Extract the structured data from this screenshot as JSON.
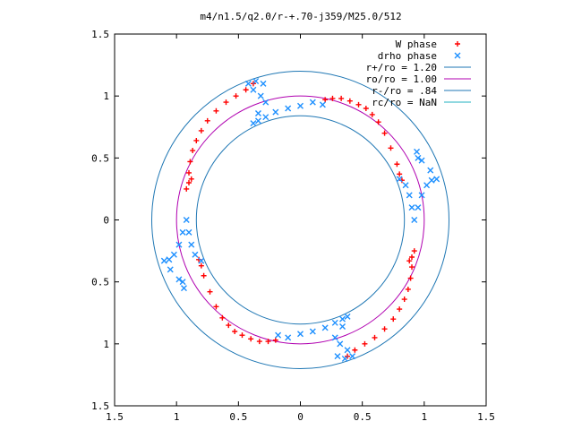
{
  "chart_data": {
    "type": "scatter",
    "title": "m4/n1.5/q2.0/r-+.70-j359/M25.0/512",
    "xlim": [
      -1.5,
      1.5
    ],
    "ylim": [
      -1.5,
      1.5
    ],
    "x_ticks": [
      -1.5,
      -1,
      -0.5,
      0,
      0.5,
      1,
      1.5
    ],
    "y_ticks": [
      -1.5,
      -1,
      -0.5,
      0,
      0.5,
      1,
      1.5
    ],
    "x_tick_labels": [
      "1.5",
      "1",
      "0.5",
      "0",
      "0.5",
      "1",
      "1.5"
    ],
    "y_tick_labels": [
      "1.5",
      "1",
      "0.5",
      "0",
      "0.5",
      "1",
      "1.5"
    ],
    "grid": false,
    "legend_position": "top-right",
    "series": [
      {
        "name": "W phase",
        "marker": "+",
        "color": "#ff0000",
        "points": [
          [
            0.2,
            0.97
          ],
          [
            0.26,
            0.98
          ],
          [
            0.33,
            0.98
          ],
          [
            0.4,
            0.96
          ],
          [
            0.47,
            0.93
          ],
          [
            0.53,
            0.9
          ],
          [
            0.58,
            0.85
          ],
          [
            0.63,
            0.79
          ],
          [
            0.68,
            0.7
          ],
          [
            0.73,
            0.58
          ],
          [
            0.78,
            0.45
          ],
          [
            0.8,
            0.37
          ],
          [
            0.82,
            0.32
          ],
          [
            0.88,
            -0.33
          ],
          [
            0.9,
            -0.3
          ],
          [
            0.92,
            -0.25
          ],
          [
            0.9,
            -0.38
          ],
          [
            0.89,
            -0.47
          ],
          [
            0.87,
            -0.56
          ],
          [
            0.84,
            -0.64
          ],
          [
            0.8,
            -0.72
          ],
          [
            0.75,
            -0.8
          ],
          [
            0.68,
            -0.88
          ],
          [
            0.6,
            -0.95
          ],
          [
            0.52,
            -1.0
          ],
          [
            0.44,
            -1.05
          ],
          [
            0.38,
            -1.1
          ],
          [
            -0.2,
            -0.97
          ],
          [
            -0.26,
            -0.98
          ],
          [
            -0.33,
            -0.98
          ],
          [
            -0.4,
            -0.96
          ],
          [
            -0.47,
            -0.93
          ],
          [
            -0.53,
            -0.9
          ],
          [
            -0.58,
            -0.85
          ],
          [
            -0.63,
            -0.79
          ],
          [
            -0.68,
            -0.7
          ],
          [
            -0.73,
            -0.58
          ],
          [
            -0.78,
            -0.45
          ],
          [
            -0.8,
            -0.37
          ],
          [
            -0.82,
            -0.32
          ],
          [
            -0.88,
            0.33
          ],
          [
            -0.9,
            0.3
          ],
          [
            -0.92,
            0.25
          ],
          [
            -0.9,
            0.38
          ],
          [
            -0.89,
            0.47
          ],
          [
            -0.87,
            0.56
          ],
          [
            -0.84,
            0.64
          ],
          [
            -0.8,
            0.72
          ],
          [
            -0.75,
            0.8
          ],
          [
            -0.68,
            0.88
          ],
          [
            -0.6,
            0.95
          ],
          [
            -0.52,
            1.0
          ],
          [
            -0.44,
            1.05
          ],
          [
            -0.38,
            1.1
          ]
        ]
      },
      {
        "name": "drho phase",
        "marker": "x",
        "color": "#1e90ff",
        "points": [
          [
            0.8,
            0.33
          ],
          [
            0.85,
            0.28
          ],
          [
            0.88,
            0.2
          ],
          [
            0.9,
            0.1
          ],
          [
            0.92,
            0.0
          ],
          [
            0.95,
            0.1
          ],
          [
            0.98,
            0.2
          ],
          [
            1.02,
            0.28
          ],
          [
            1.06,
            0.32
          ],
          [
            1.1,
            0.33
          ],
          [
            1.05,
            0.4
          ],
          [
            0.98,
            0.48
          ],
          [
            0.94,
            0.55
          ],
          [
            0.95,
            0.5
          ],
          [
            -0.18,
            -0.93
          ],
          [
            -0.1,
            -0.95
          ],
          [
            0.0,
            -0.92
          ],
          [
            0.1,
            -0.9
          ],
          [
            0.2,
            -0.87
          ],
          [
            0.28,
            -0.83
          ],
          [
            0.34,
            -0.8
          ],
          [
            0.38,
            -0.78
          ],
          [
            0.34,
            -0.86
          ],
          [
            0.28,
            -0.95
          ],
          [
            0.32,
            -1.0
          ],
          [
            0.38,
            -1.05
          ],
          [
            0.42,
            -1.1
          ],
          [
            0.36,
            -1.12
          ],
          [
            0.3,
            -1.1
          ],
          [
            -0.8,
            -0.33
          ],
          [
            -0.85,
            -0.28
          ],
          [
            -0.88,
            -0.2
          ],
          [
            -0.9,
            -0.1
          ],
          [
            -0.92,
            0.0
          ],
          [
            -0.95,
            -0.1
          ],
          [
            -0.98,
            -0.2
          ],
          [
            -1.02,
            -0.28
          ],
          [
            -1.06,
            -0.32
          ],
          [
            -1.1,
            -0.33
          ],
          [
            -1.05,
            -0.4
          ],
          [
            -0.98,
            -0.48
          ],
          [
            -0.94,
            -0.55
          ],
          [
            -0.95,
            -0.5
          ],
          [
            0.18,
            0.93
          ],
          [
            0.1,
            0.95
          ],
          [
            0.0,
            0.92
          ],
          [
            -0.1,
            0.9
          ],
          [
            -0.2,
            0.87
          ],
          [
            -0.28,
            0.83
          ],
          [
            -0.34,
            0.8
          ],
          [
            -0.38,
            0.78
          ],
          [
            -0.34,
            0.86
          ],
          [
            -0.28,
            0.95
          ],
          [
            -0.32,
            1.0
          ],
          [
            -0.38,
            1.05
          ],
          [
            -0.42,
            1.1
          ],
          [
            -0.36,
            1.12
          ],
          [
            -0.3,
            1.1
          ]
        ]
      },
      {
        "name": "r+/ro = 1.20",
        "type": "circle",
        "r": 1.2,
        "color": "#1f77b4"
      },
      {
        "name": "ro/ro = 1.00",
        "type": "circle",
        "r": 1.0,
        "color": "#b000b0"
      },
      {
        "name": "r-/ro = .84",
        "type": "circle",
        "r": 0.84,
        "color": "#1f77b4"
      },
      {
        "name": "rc/ro = NaN",
        "type": "circle",
        "r": null,
        "color": "#20b0c0"
      }
    ]
  }
}
